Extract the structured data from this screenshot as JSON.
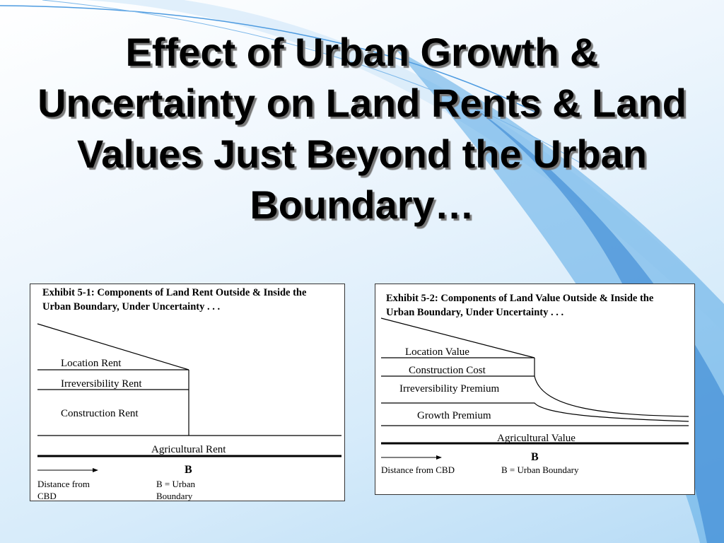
{
  "slide": {
    "title": "Effect of Urban Growth & Uncertainty on Land Rents & Land Values Just Beyond the Urban Boundary…"
  },
  "exhibit1": {
    "title": "Exhibit 5-1: Components of Land Rent Outside & Inside the Urban Boundary, Under Uncertainty . . .",
    "location_rent": "Location Rent",
    "irreversibility_rent": "Irreversibility Rent",
    "construction_rent": "Construction Rent",
    "agricultural_rent": "Agricultural Rent",
    "boundary_marker": "B",
    "distance_label": "Distance from CBD",
    "boundary_label": "B  =  Urban Boundary"
  },
  "exhibit2": {
    "title": "Exhibit 5-2: Components of Land Value Outside & Inside the Urban Boundary, Under Uncertainty . . .",
    "location_value": "Location Value",
    "construction_cost": "Construction Cost",
    "irreversibility_premium": "Irreversibility Premium",
    "growth_premium": "Growth Premium",
    "agricultural_value": "Agricultural Value",
    "boundary_marker": "B",
    "distance_label": "Distance from CBD",
    "boundary_label": "B  =  Urban Boundary"
  },
  "colors": {
    "background_light": "#eef6fd",
    "accent_blue": "#3a8fd8",
    "line": "#000000"
  }
}
